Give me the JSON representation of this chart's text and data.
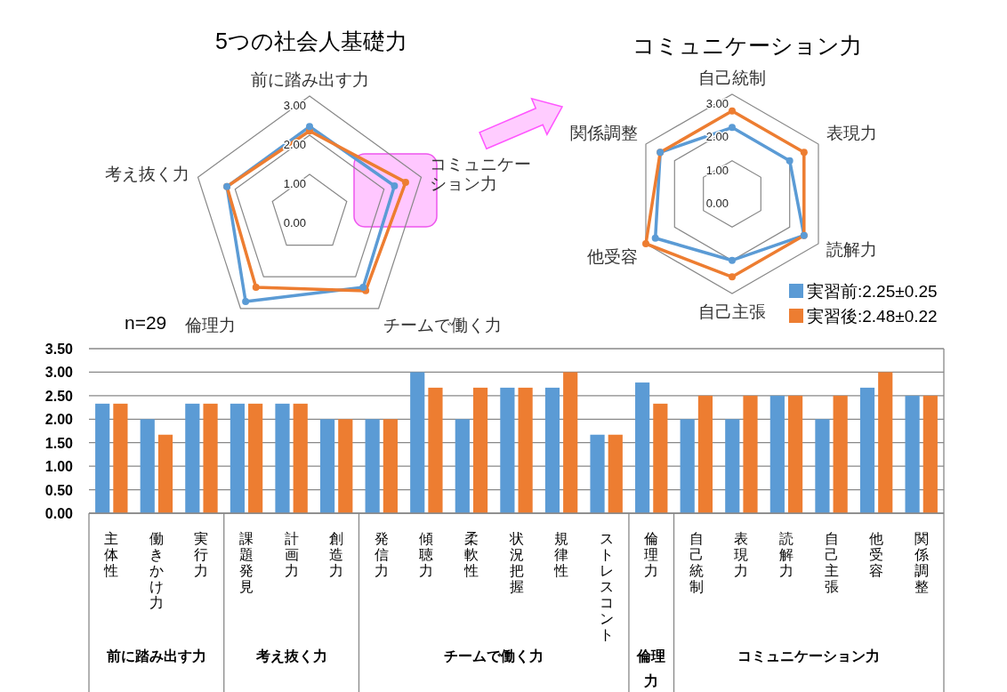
{
  "chart_data": [
    {
      "type": "radar",
      "title": "5つの社会人基礎力",
      "categories": [
        "前に踏み出す力",
        "コミュニケーション力",
        "チームで働く力",
        "倫理力",
        "考え抜く力"
      ],
      "ylim": [
        0,
        3
      ],
      "yticks": [
        {
          "value": 0,
          "label": "0.00"
        },
        {
          "value": 1,
          "label": "1.00"
        },
        {
          "value": 2,
          "label": "2.00"
        },
        {
          "value": 3,
          "label": "3.00"
        }
      ],
      "grid": true,
      "marker": "circle",
      "series": [
        {
          "color": "#5b9bd5",
          "values": [
            2.22,
            2.28,
            2.33,
            2.78,
            2.22
          ]
        },
        {
          "color": "#ed7d31",
          "values": [
            2.11,
            2.58,
            2.44,
            2.33,
            2.22
          ]
        }
      ],
      "annotations": [
        "n=29"
      ]
    },
    {
      "type": "radar",
      "title": "コミュニケーション力",
      "categories": [
        "自己統制",
        "表現力",
        "読解力",
        "自己主張",
        "他受容",
        "関係調整"
      ],
      "ylim": [
        0,
        3
      ],
      "yticks": [
        {
          "value": 0,
          "label": "0.00"
        },
        {
          "value": 1,
          "label": "1.00"
        },
        {
          "value": 2,
          "label": "2.00"
        },
        {
          "value": 3,
          "label": "3.00"
        }
      ],
      "grid": true,
      "marker": "circle",
      "legend": "bottom right",
      "series": [
        {
          "name": "実習前:2.25±0.25",
          "color": "#5b9bd5",
          "values": [
            2.0,
            2.0,
            2.5,
            2.0,
            2.67,
            2.5
          ]
        },
        {
          "name": "実習後:2.48±0.22",
          "color": "#ed7d31",
          "values": [
            2.5,
            2.5,
            2.5,
            2.5,
            3.0,
            2.5
          ]
        }
      ]
    },
    {
      "type": "bar",
      "categories": [
        "主体性",
        "働きかけ力",
        "実行力",
        "課題発見",
        "計画力",
        "創造力",
        "発信力",
        "傾聴力",
        "柔軟性",
        "状況把握",
        "規律性",
        "ストレスコント",
        "倫理力",
        "自己統制",
        "表現力",
        "読解力",
        "自己主張",
        "他受容",
        "関係調整"
      ],
      "ylim": [
        0,
        3.5
      ],
      "yticks": [
        {
          "value": 0,
          "label": "0.00"
        },
        {
          "value": 0.5,
          "label": "0.50"
        },
        {
          "value": 1,
          "label": "1.00"
        },
        {
          "value": 1.5,
          "label": "1.50"
        },
        {
          "value": 2,
          "label": "2.00"
        },
        {
          "value": 2.5,
          "label": "2.50"
        },
        {
          "value": 3,
          "label": "3.00"
        },
        {
          "value": 3.5,
          "label": "3.50"
        }
      ],
      "grid": "y",
      "series": [
        {
          "color": "#5b9bd5",
          "values": [
            2.33,
            2.0,
            2.33,
            2.33,
            2.33,
            2.0,
            2.0,
            3.0,
            2.0,
            2.67,
            2.67,
            1.67,
            2.78,
            2.0,
            2.0,
            2.5,
            2.0,
            2.67,
            2.5
          ]
        },
        {
          "color": "#ed7d31",
          "values": [
            2.33,
            1.67,
            2.33,
            2.33,
            2.33,
            2.0,
            2.0,
            2.67,
            2.67,
            2.67,
            3.0,
            1.67,
            2.33,
            2.5,
            2.5,
            2.5,
            2.5,
            3.0,
            2.5
          ]
        }
      ],
      "annotations": [
        "前に踏み出す力",
        "考え抜く力",
        "チームで働く力",
        "倫理力",
        "コミュニケーション力"
      ]
    }
  ]
}
